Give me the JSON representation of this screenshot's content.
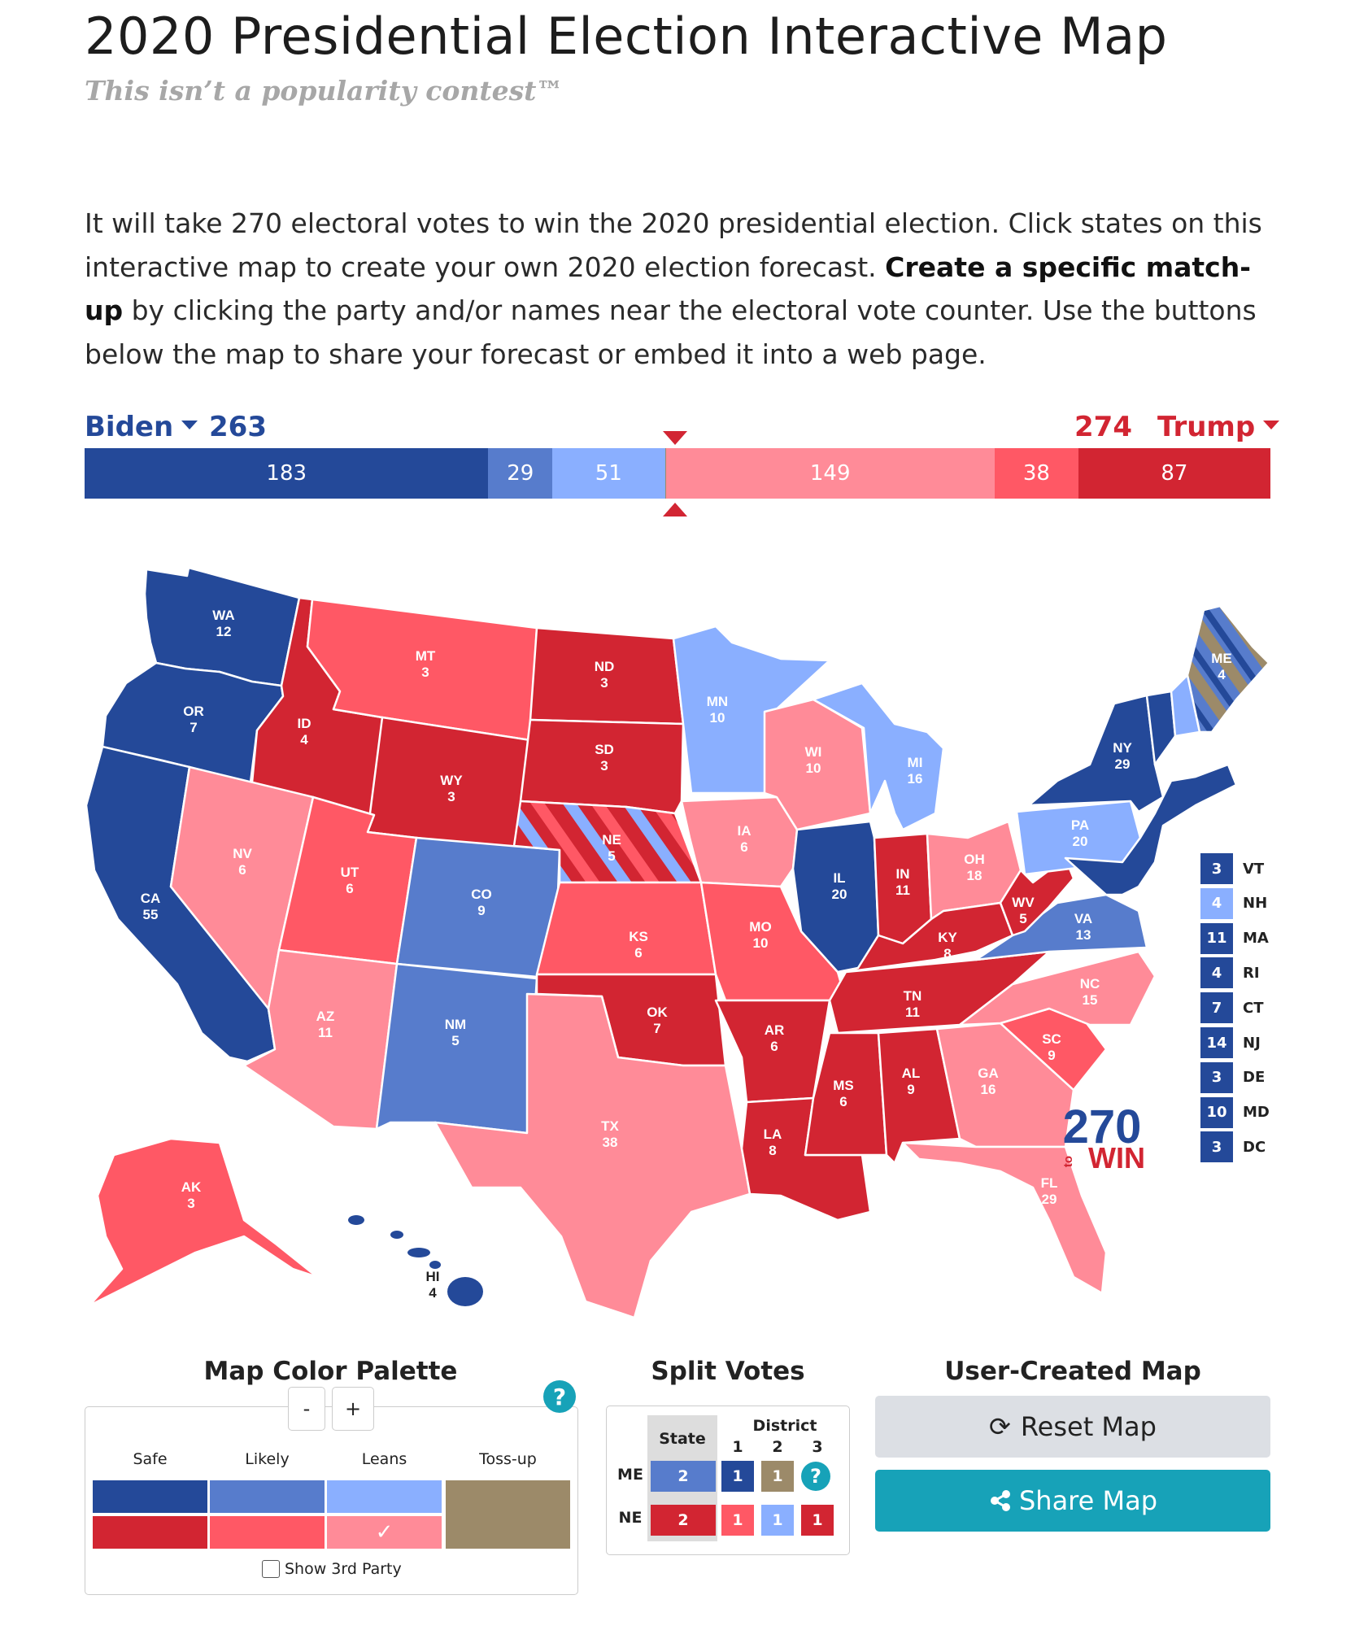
{
  "header": {
    "title": "2020 Presidential Election Interactive Map",
    "tagline": "This isn’t a popularity contest™"
  },
  "intro": {
    "part1": "It will take 270 electoral votes to win the 2020 presidential election. Click states on this interactive map to create your own 2020 election forecast. ",
    "bold": "Create a specific match-up",
    "part2": " by clicking the party and/or names near the electoral vote counter. Use the buttons below the map to share your forecast or embed it into a web page."
  },
  "counter": {
    "dem_name": "Biden",
    "dem_total": "263",
    "rep_name": "Trump",
    "rep_total": "274",
    "segments": [
      {
        "label": "183",
        "value": 183,
        "color": "#244999"
      },
      {
        "label": "29",
        "value": 29,
        "color": "#577ccc"
      },
      {
        "label": "51",
        "value": 51,
        "color": "#8aafff"
      },
      {
        "label": "",
        "value": 0.4,
        "color": "#9c8a69"
      },
      {
        "label": "149",
        "value": 149,
        "color": "#ff8b98"
      },
      {
        "label": "38",
        "value": 38,
        "color": "#ff5865"
      },
      {
        "label": "87",
        "value": 87,
        "color": "#d22532"
      }
    ]
  },
  "colors": {
    "safe_d": "#244999",
    "likely_d": "#577ccc",
    "lean_d": "#8aafff",
    "safe_r": "#d22532",
    "likely_r": "#ff5865",
    "lean_r": "#ff8b98",
    "tossup": "#9c8a69"
  },
  "states": {
    "WA": "12",
    "OR": "7",
    "CA": "55",
    "ID": "4",
    "NV": "6",
    "MT": "3",
    "WY": "3",
    "UT": "6",
    "AZ": "11",
    "CO": "9",
    "NM": "5",
    "ND": "3",
    "SD": "3",
    "NE": "5",
    "KS": "6",
    "OK": "7",
    "TX": "38",
    "MN": "10",
    "IA": "6",
    "MO": "10",
    "AR": "6",
    "LA": "8",
    "WI": "10",
    "IL": "20",
    "MI": "16",
    "IN": "11",
    "OH": "18",
    "KY": "8",
    "TN": "11",
    "MS": "6",
    "AL": "9",
    "GA": "16",
    "FL": "29",
    "SC": "9",
    "NC": "15",
    "VA": "13",
    "WV": "5",
    "PA": "20",
    "NY": "29",
    "ME": "4",
    "AK": "3",
    "HI": "4"
  },
  "small_states": [
    {
      "abbr": "VT",
      "ev": "3",
      "color": "#244999"
    },
    {
      "abbr": "NH",
      "ev": "4",
      "color": "#8aafff"
    },
    {
      "abbr": "MA",
      "ev": "11",
      "color": "#244999"
    },
    {
      "abbr": "RI",
      "ev": "4",
      "color": "#244999"
    },
    {
      "abbr": "CT",
      "ev": "7",
      "color": "#244999"
    },
    {
      "abbr": "NJ",
      "ev": "14",
      "color": "#244999"
    },
    {
      "abbr": "DE",
      "ev": "3",
      "color": "#244999"
    },
    {
      "abbr": "MD",
      "ev": "10",
      "color": "#244999"
    },
    {
      "abbr": "DC",
      "ev": "3",
      "color": "#244999"
    }
  ],
  "logo": {
    "number": "270",
    "to": "to",
    "win": "WIN"
  },
  "palette": {
    "title": "Map Color Palette",
    "minus": "-",
    "plus": "+",
    "help": "?",
    "headers": [
      "Safe",
      "Likely",
      "Leans",
      "Toss-up"
    ],
    "checkmark": "✓",
    "third_party_label": "Show 3rd Party"
  },
  "split": {
    "title": "Split Votes",
    "state_header": "State",
    "district_header": "District",
    "district_numbers": [
      "1",
      "2",
      "3"
    ],
    "rows": [
      {
        "state": "ME",
        "total": "2",
        "districts": [
          "1",
          "1"
        ],
        "help": "?"
      },
      {
        "state": "NE",
        "total": "2",
        "districts": [
          "1",
          "1",
          "1"
        ]
      }
    ]
  },
  "user_map": {
    "title": "User-Created Map",
    "reset_label": "Reset Map",
    "share_label": "Share Map"
  }
}
